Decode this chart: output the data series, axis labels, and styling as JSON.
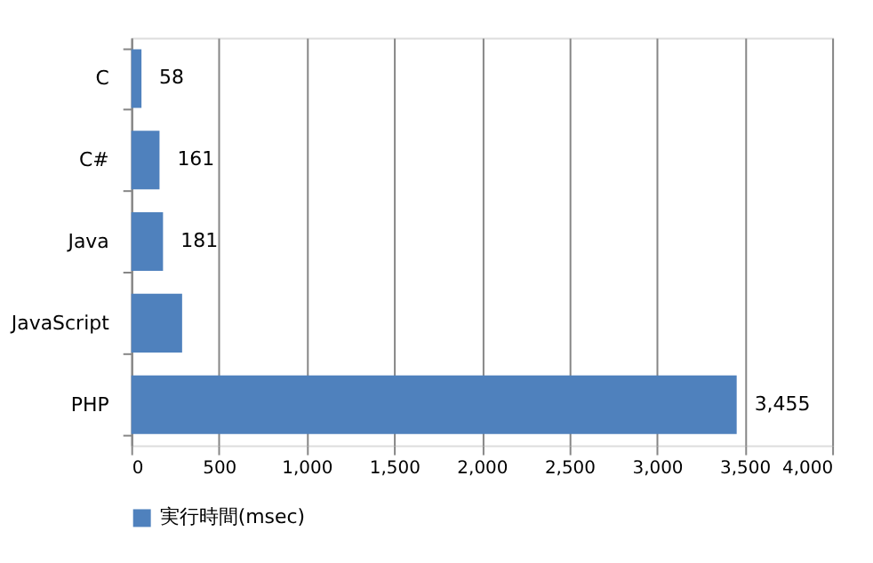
{
  "chart_data": {
    "type": "bar",
    "orientation": "horizontal",
    "categories": [
      "C",
      "C#",
      "Java",
      "JavaScript",
      "PHP"
    ],
    "series": [
      {
        "name": "実行時間(msec)",
        "color": "#4f81bd",
        "values": [
          58,
          161,
          181,
          290,
          3455
        ],
        "value_labels": [
          "58",
          "161",
          "181",
          null,
          "3,455"
        ]
      }
    ],
    "xlim": [
      0,
      4000
    ],
    "xticks": [
      0,
      500,
      {
        "value": 1000,
        "label": "1,000"
      },
      {
        "value": 1500,
        "label": "1,500"
      },
      {
        "value": 2000,
        "label": "2,000"
      },
      {
        "value": 2500,
        "label": "2,500"
      },
      {
        "value": 3000,
        "label": "3,000"
      },
      {
        "value": 3500,
        "label": "3,500"
      },
      {
        "value": 4000,
        "label": "4,000"
      }
    ],
    "grid": "x",
    "legend": "bottom"
  }
}
